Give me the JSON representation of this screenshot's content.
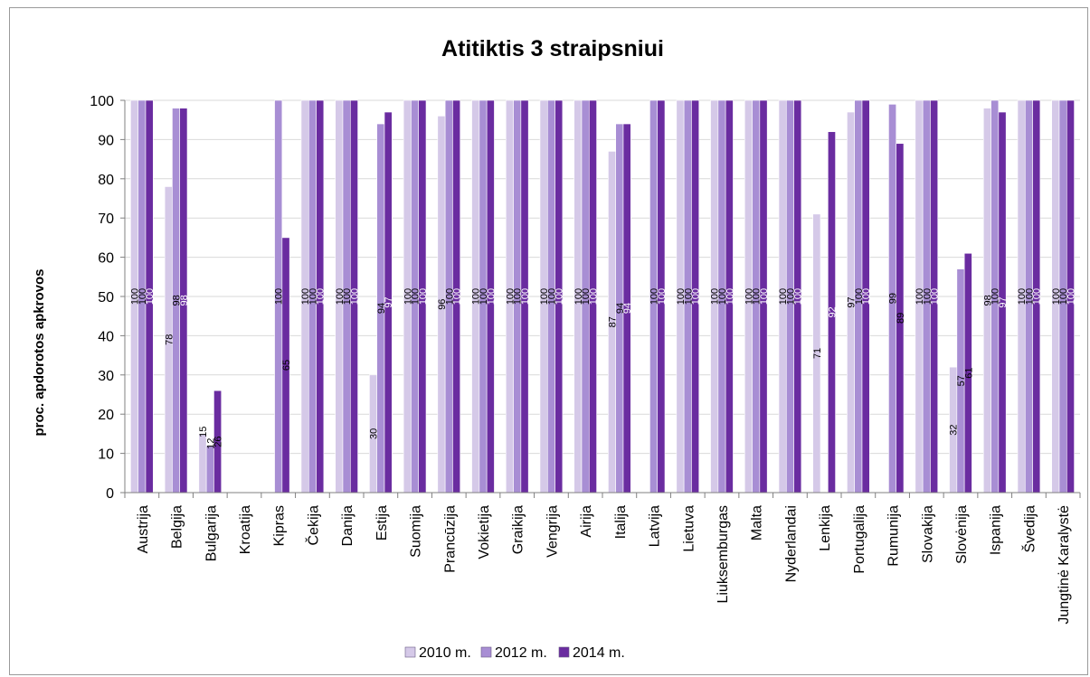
{
  "chart_data": {
    "type": "bar",
    "title": "Atitiktis 3 straipsniui",
    "ylabel": "proc. apdorotos apkrovos",
    "xlabel": "",
    "ylim": [
      0,
      100
    ],
    "yticks": [
      0,
      10,
      20,
      30,
      40,
      50,
      60,
      70,
      80,
      90,
      100
    ],
    "grid": true,
    "legend_position": "bottom",
    "categories": [
      "Austrija",
      "Belgija",
      "Bulgarija",
      "Kroatija",
      "Kipras",
      "Čekija",
      "Danija",
      "Estija",
      "Suomija",
      "Prancūzija",
      "Vokietija",
      "Graikija",
      "Vengrija",
      "Airija",
      "Italija",
      "Latvija",
      "Lietuva",
      "Liuksemburgas",
      "Malta",
      "Nyderlandai",
      "Lenkija",
      "Portugalija",
      "Rumunija",
      "Slovakija",
      "Slovėnija",
      "Ispanija",
      "Švedija",
      "Jungtinė Karalystė"
    ],
    "series": [
      {
        "name": "2010 m.",
        "color": "#d5c9e8",
        "values": [
          100,
          78,
          15,
          0,
          null,
          100,
          100,
          30,
          100,
          96,
          100,
          100,
          100,
          100,
          87,
          null,
          100,
          100,
          100,
          100,
          71,
          97,
          null,
          100,
          32,
          98,
          100,
          100
        ],
        "labels": [
          "100",
          "78",
          "15",
          "",
          "",
          "100",
          "100",
          "30",
          "100",
          "96",
          "100",
          "100",
          "100",
          "100",
          "87",
          "",
          "100",
          "100",
          "100",
          "100",
          "71",
          "97",
          "",
          "100",
          "32",
          "98",
          "100",
          "100"
        ]
      },
      {
        "name": "2012 m.",
        "color": "#a88ed4",
        "values": [
          100,
          98,
          12,
          0,
          100,
          100,
          100,
          94,
          100,
          100,
          100,
          100,
          100,
          100,
          94,
          100,
          100,
          100,
          100,
          100,
          null,
          100,
          99,
          100,
          57,
          100,
          100,
          100
        ],
        "labels": [
          "100",
          "98",
          "12",
          "",
          "100",
          "100",
          "100",
          "94",
          "100",
          "100",
          "100",
          "100",
          "100",
          "100",
          "94",
          "100",
          "100",
          "100",
          "100",
          "100",
          "",
          "100",
          "99",
          "100",
          "57",
          "100",
          "100",
          "100"
        ]
      },
      {
        "name": "2014 m.",
        "color": "#6a2ca0",
        "values": [
          100,
          98,
          26,
          0,
          65,
          100,
          100,
          97,
          100,
          100,
          100,
          100,
          100,
          100,
          94,
          100,
          100,
          100,
          100,
          100,
          92,
          100,
          89,
          100,
          61,
          97,
          100,
          100
        ],
        "labels": [
          "100",
          "98",
          "26",
          "",
          "65",
          "100",
          "100",
          "97",
          "100",
          "100",
          "100",
          "100",
          "100",
          "100",
          "94",
          "100",
          "100",
          "100",
          "100",
          "100",
          "92",
          "100",
          "89",
          "100",
          "61",
          "97",
          "100",
          "100"
        ]
      }
    ]
  }
}
